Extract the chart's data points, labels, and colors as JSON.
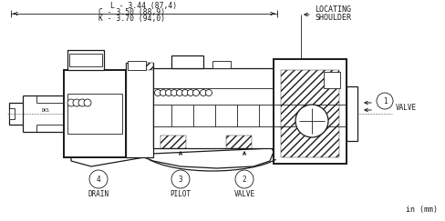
{
  "bg_color": "#ffffff",
  "line_color": "#1a1a1a",
  "dim_texts": [
    "L - 3.44 (87,4)",
    "C - 3.50 (88,9)",
    "K - 3.70 (94,0)"
  ],
  "locating_text": [
    "LOCATING",
    "SHOULDER"
  ],
  "in_mm_text": "in (mm)",
  "figsize": [
    4.88,
    2.43
  ],
  "dpi": 100,
  "port4_label": "DRAIN",
  "port3_label": "PILOT",
  "port2_label": "VALVE",
  "port1_label": "VALVE"
}
